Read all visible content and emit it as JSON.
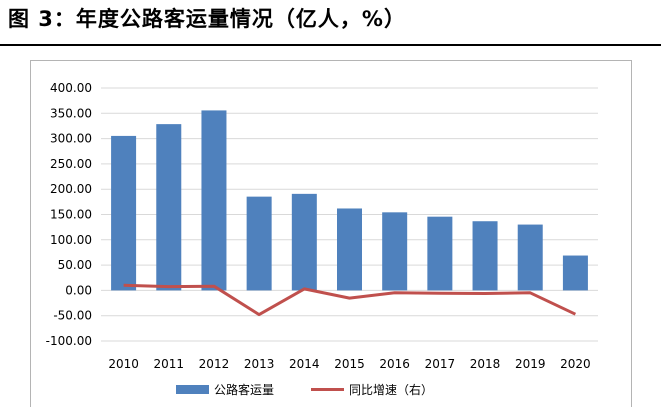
{
  "figure": {
    "title": "图 3：年度公路客运量情况（亿人，%）"
  },
  "chart_data": {
    "type": "bar",
    "categories": [
      "2010",
      "2011",
      "2012",
      "2013",
      "2014",
      "2015",
      "2016",
      "2017",
      "2018",
      "2019",
      "2020"
    ],
    "series": [
      {
        "name": "公路客运量",
        "kind": "bar",
        "color": "#4f81bd",
        "values": [
          305.3,
          328.6,
          355.7,
          185.3,
          190.8,
          161.9,
          154.3,
          145.7,
          136.7,
          130.1,
          68.9
        ]
      },
      {
        "name": "同比增速（右）",
        "kind": "line",
        "color": "#c0504d",
        "values": [
          10.1,
          7.6,
          8.3,
          -47.9,
          2.9,
          -15.2,
          -4.7,
          -5.6,
          -6.2,
          -4.8,
          -47.0
        ]
      }
    ],
    "yticks": [
      "400.00",
      "350.00",
      "300.00",
      "250.00",
      "200.00",
      "150.00",
      "100.00",
      "50.00",
      "0.00",
      "-50.00",
      "-100.00"
    ],
    "ylim": [
      -100,
      400
    ],
    "grid": true,
    "legend": "bottom",
    "xlabel": "",
    "ylabel": ""
  }
}
